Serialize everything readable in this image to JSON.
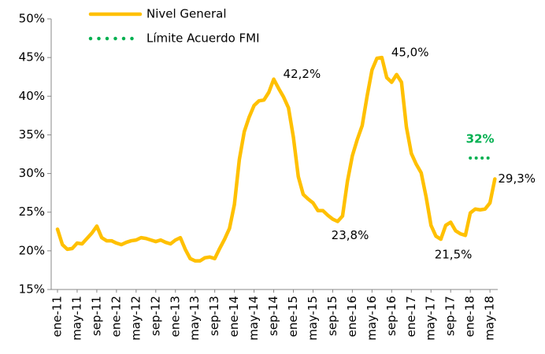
{
  "chart_data": {
    "type": "line",
    "categories": [
      "ene-11",
      null,
      null,
      null,
      "may-11",
      null,
      null,
      null,
      "sep-11",
      null,
      null,
      null,
      "ene-12",
      null,
      null,
      null,
      "may-12",
      null,
      null,
      null,
      "sep-12",
      null,
      null,
      null,
      "ene-13",
      null,
      null,
      null,
      "may-13",
      null,
      null,
      null,
      "sep-13",
      null,
      null,
      null,
      "ene-14",
      null,
      null,
      null,
      "may-14",
      null,
      null,
      null,
      "sep-14",
      null,
      null,
      null,
      "ene-15",
      null,
      null,
      null,
      "may-15",
      null,
      null,
      null,
      "sep-15",
      null,
      null,
      null,
      "ene-16",
      null,
      null,
      null,
      "may-16",
      null,
      null,
      null,
      "sep-16",
      null,
      null,
      null,
      "ene-17",
      null,
      null,
      null,
      "may-17",
      null,
      null,
      null,
      "sep-17",
      null,
      null,
      null,
      "ene-18",
      null,
      null,
      null,
      "may-18",
      null
    ],
    "series": [
      {
        "name": "Nivel General",
        "color": "#FFC000",
        "values": [
          22.8,
          20.8,
          20.2,
          20.3,
          21.0,
          20.9,
          21.6,
          22.3,
          23.2,
          21.7,
          21.3,
          21.3,
          21.0,
          20.8,
          21.1,
          21.3,
          21.4,
          21.7,
          21.6,
          21.4,
          21.2,
          21.4,
          21.1,
          20.9,
          21.4,
          21.7,
          20.2,
          19.0,
          18.7,
          18.7,
          19.1,
          19.2,
          19.0,
          20.3,
          21.5,
          22.9,
          26.0,
          31.8,
          35.4,
          37.3,
          38.8,
          39.4,
          39.5,
          40.5,
          42.2,
          41.0,
          39.9,
          38.5,
          34.7,
          29.6,
          27.3,
          26.7,
          26.2,
          25.2,
          25.2,
          24.6,
          24.1,
          23.8,
          24.5,
          29.0,
          32.3,
          34.4,
          36.2,
          40.0,
          43.4,
          44.9,
          45.0,
          42.4,
          41.8,
          42.8,
          41.8,
          36.0,
          32.6,
          31.2,
          30.1,
          27.0,
          23.3,
          21.9,
          21.5,
          23.3,
          23.7,
          22.6,
          22.2,
          22.0,
          24.9,
          25.4,
          25.3,
          25.4,
          26.2,
          29.3
        ],
        "value_labels": [
          null,
          null,
          null,
          null,
          null,
          null,
          null,
          null,
          null,
          null,
          null,
          null,
          null,
          null,
          null,
          null,
          null,
          null,
          null,
          null,
          null,
          null,
          null,
          null,
          null,
          null,
          null,
          null,
          null,
          null,
          null,
          null,
          null,
          null,
          null,
          null,
          null,
          null,
          null,
          null,
          null,
          null,
          null,
          null,
          "42,2%",
          null,
          null,
          null,
          null,
          null,
          null,
          null,
          null,
          null,
          null,
          null,
          null,
          "23,8%",
          null,
          null,
          null,
          null,
          null,
          null,
          null,
          null,
          "45,0%",
          null,
          null,
          null,
          null,
          null,
          null,
          null,
          null,
          null,
          null,
          null,
          "21,5%",
          null,
          null,
          null,
          null,
          null,
          null,
          null,
          null,
          null,
          null,
          "29,3%"
        ]
      },
      {
        "name": "Límite Acuerdo FMI",
        "color": "#00B050",
        "dotted": true,
        "values": [
          null,
          null,
          null,
          null,
          null,
          null,
          null,
          null,
          null,
          null,
          null,
          null,
          null,
          null,
          null,
          null,
          null,
          null,
          null,
          null,
          null,
          null,
          null,
          null,
          null,
          null,
          null,
          null,
          null,
          null,
          null,
          null,
          null,
          null,
          null,
          null,
          null,
          null,
          null,
          null,
          null,
          null,
          null,
          null,
          null,
          null,
          null,
          null,
          null,
          null,
          null,
          null,
          null,
          null,
          null,
          null,
          null,
          null,
          null,
          null,
          null,
          null,
          null,
          null,
          null,
          null,
          null,
          null,
          null,
          null,
          null,
          null,
          null,
          null,
          null,
          null,
          null,
          null,
          null,
          null,
          null,
          null,
          null,
          null,
          32,
          32,
          32,
          32,
          32,
          null
        ],
        "value_labels": [
          null,
          null,
          null,
          null,
          null,
          null,
          null,
          null,
          null,
          null,
          null,
          null,
          null,
          null,
          null,
          null,
          null,
          null,
          null,
          null,
          null,
          null,
          null,
          null,
          null,
          null,
          null,
          null,
          null,
          null,
          null,
          null,
          null,
          null,
          null,
          null,
          null,
          null,
          null,
          null,
          null,
          null,
          null,
          null,
          null,
          null,
          null,
          null,
          null,
          null,
          null,
          null,
          null,
          null,
          null,
          null,
          null,
          null,
          null,
          null,
          null,
          null,
          null,
          null,
          null,
          null,
          null,
          null,
          null,
          null,
          null,
          null,
          null,
          null,
          null,
          null,
          null,
          null,
          null,
          null,
          null,
          null,
          null,
          null,
          null,
          null,
          "32%",
          null,
          null,
          null
        ]
      }
    ],
    "ylim": [
      15,
      50
    ],
    "yticks": [
      {
        "value": 15,
        "label": "15%"
      },
      {
        "value": 20,
        "label": "20%"
      },
      {
        "value": 25,
        "label": "25%"
      },
      {
        "value": 30,
        "label": "30%"
      },
      {
        "value": 35,
        "label": "35%"
      },
      {
        "value": 40,
        "label": "40%"
      },
      {
        "value": 45,
        "label": "45%"
      },
      {
        "value": 50,
        "label": "50%"
      }
    ],
    "grid": false
  }
}
